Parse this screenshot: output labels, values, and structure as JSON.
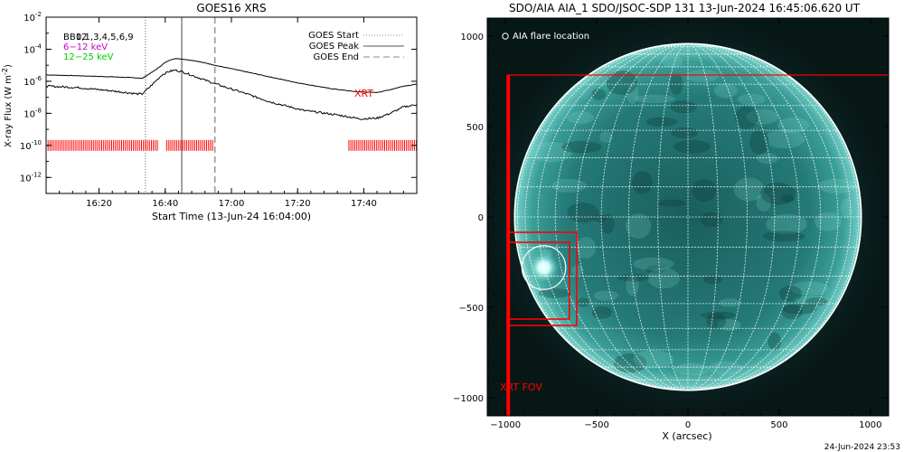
{
  "chart_data": [
    {
      "type": "line",
      "title": "GOES16 XRS",
      "xlabel": "Start Time (13-Jun-24 16:04:00)",
      "ylabel": "X-ray Flux (W m",
      "ylabel_exp": "-2",
      "ylabel_close": ")",
      "log_scale_y": true,
      "xlim_minutes_after_1604": [
        0,
        112
      ],
      "ylim": [
        1e-13,
        0.01
      ],
      "x_ticks": [
        {
          "label": "16:20",
          "minutes": 16
        },
        {
          "label": "16:40",
          "minutes": 36
        },
        {
          "label": "17:00",
          "minutes": 56
        },
        {
          "label": "17:20",
          "minutes": 76
        },
        {
          "label": "17:40",
          "minutes": 96
        }
      ],
      "y_ticks": [
        {
          "base": "10",
          "exp": "-12",
          "value": 1e-12
        },
        {
          "base": "10",
          "exp": "-10",
          "value": 1e-10
        },
        {
          "base": "10",
          "exp": "-8",
          "value": 1e-08
        },
        {
          "base": "10",
          "exp": "-6",
          "value": 1e-06
        },
        {
          "base": "10",
          "exp": "-4",
          "value": 0.0001
        },
        {
          "base": "10",
          "exp": "-2",
          "value": 0.01
        }
      ],
      "series": [
        {
          "color": "#000000",
          "x": [
            0,
            10,
            20,
            28,
            29,
            33,
            36,
            38,
            40,
            45,
            48,
            52,
            58,
            66,
            76,
            86,
            94,
            100,
            104,
            108,
            112
          ],
          "values": [
            2.5e-06,
            2.2e-06,
            1.9e-06,
            1.6e-06,
            1.5e-06,
            5e-06,
            1.5e-05,
            2.4e-05,
            2.6e-05,
            1.9e-05,
            1.4e-05,
            9e-06,
            5e-06,
            2.2e-06,
            8e-07,
            3.5e-07,
            2.2e-07,
            2e-07,
            3e-07,
            5e-07,
            6.5e-07
          ]
        },
        {
          "color": "#000000",
          "x": [
            0,
            10,
            20,
            28,
            29,
            32,
            35,
            37,
            39,
            41,
            45,
            52,
            60,
            68,
            78,
            88,
            95,
            100,
            104,
            108,
            112
          ],
          "values": [
            5e-07,
            4e-07,
            2.5e-07,
            1.6e-07,
            1.6e-07,
            6e-07,
            2.5e-06,
            4e-06,
            5e-06,
            4e-06,
            2e-06,
            6e-07,
            1.8e-07,
            5e-08,
            1.5e-08,
            8e-09,
            4.5e-09,
            5e-09,
            1e-08,
            2.5e-08,
            3.5e-08
          ]
        }
      ],
      "vlines": [
        {
          "name": "GOES Start",
          "minutes": 30,
          "style": "dotted",
          "color": "#999999"
        },
        {
          "name": "GOES Peak",
          "minutes": 41,
          "style": "solid",
          "color": "#999999"
        },
        {
          "name": "GOES End",
          "minutes": 51,
          "style": "dashed",
          "color": "#999999"
        }
      ],
      "xrt_coverage": {
        "label": "XRT",
        "color": "#ff0000",
        "y_value": 1e-10,
        "segments": [
          [
            0,
            34
          ],
          [
            36.5,
            50.5
          ],
          [
            91.5,
            112
          ]
        ]
      },
      "legend": {
        "left": [
          {
            "text": "BB12",
            "overlay": "0,1,3,4,5,6,9",
            "color": "#000000"
          },
          {
            "text": "6−12 keV",
            "color": "#cc00cc"
          },
          {
            "text": "12−25 keV",
            "color": "#00cc00"
          }
        ],
        "right": [
          {
            "text": "GOES Start",
            "style": "dotted"
          },
          {
            "text": "GOES Peak",
            "style": "solid"
          },
          {
            "text": "GOES End",
            "style": "dashed"
          }
        ]
      }
    },
    {
      "type": "image-map",
      "title": "SDO/AIA AIA_1 SDO/JSOC-SDP 131 13-Jun-2024 16:45:06.620 UT",
      "xlabel": "X (arcsec)",
      "xlim": [
        -1100,
        1100
      ],
      "ylim": [
        -1100,
        1100
      ],
      "x_ticks": [
        -1000,
        -500,
        0,
        500,
        1000
      ],
      "y_ticks": [
        -1000,
        -500,
        0,
        500,
        1000
      ],
      "solar_radius_arcsec": 950,
      "grid_spacing_deg": 10,
      "colors": {
        "disk": "#2a8c8a",
        "disk_bright": "#8fe8e0",
        "rim": "#ffffff",
        "fov": "#ff0000"
      },
      "flare_location": {
        "label": "AIA flare location",
        "x": -790,
        "y": -280,
        "radius": 120
      },
      "xrt_fov": {
        "label": "XRT FOV",
        "boxes": [
          {
            "x0": -990,
            "x1": 1105,
            "y0": -1105,
            "y1": 785
          },
          {
            "x0": -980,
            "x1": -610,
            "y0": -600,
            "y1": -85
          },
          {
            "x0": -980,
            "x1": -650,
            "y0": -565,
            "y1": -140
          }
        ]
      },
      "timestamp": "24-Jun-2024 23:53"
    }
  ]
}
